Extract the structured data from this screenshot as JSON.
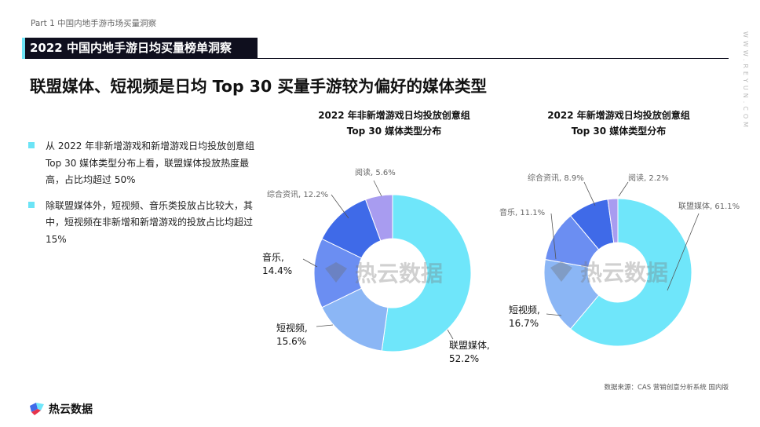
{
  "header": {
    "part": "Part 1  中国内地手游市场买量洞察",
    "banner": "2022 中国内地手游日均买量榜单洞察",
    "headline": "联盟媒体、短视频是日均 Top 30 买量手游较为偏好的媒体类型",
    "side_url": "WWW.REYUN.COM"
  },
  "bullets": [
    "从 2022 年非新增游戏和新增游戏日均投放创意组 Top 30 媒体类型分布上看，联盟媒体投放热度最高，占比均超过 50%",
    "除联盟媒体外，短视频、音乐类投放占比较大，其中，短视频在非新增和新增游戏的投放占比均超过 15%"
  ],
  "chart_data": [
    {
      "type": "pie",
      "title_lines": [
        "2022 年非新增游戏日均投放创意组",
        "Top 30 媒体类型分布"
      ],
      "watermark": "热云数据",
      "slices": [
        {
          "label": "联盟媒体",
          "value": 52.2,
          "display": "联盟媒体,\n52.2%",
          "color": "#6fe6fa"
        },
        {
          "label": "短视频",
          "value": 15.6,
          "display": "短视频,\n15.6%",
          "color": "#8bb6f5"
        },
        {
          "label": "音乐",
          "value": 14.4,
          "display": "音乐,\n14.4%",
          "color": "#6b8ef2"
        },
        {
          "label": "综合资讯",
          "value": 12.2,
          "display": "综合资讯, 12.2%",
          "color": "#3f6ae8"
        },
        {
          "label": "阅读",
          "value": 5.6,
          "display": "阅读, 5.6%",
          "color": "#a89cf0"
        }
      ]
    },
    {
      "type": "pie",
      "title_lines": [
        "2022 年新增游戏日均投放创意组",
        "Top 30 媒体类型分布"
      ],
      "watermark": "热云数据",
      "slices": [
        {
          "label": "联盟媒体",
          "value": 61.1,
          "display": "联盟媒体, 61.1%",
          "color": "#6fe6fa"
        },
        {
          "label": "短视频",
          "value": 16.7,
          "display": "短视频,\n16.7%",
          "color": "#8bb6f5"
        },
        {
          "label": "音乐",
          "value": 11.1,
          "display": "音乐, 11.1%",
          "color": "#6b8ef2"
        },
        {
          "label": "综合资讯",
          "value": 8.9,
          "display": "综合资讯, 8.9%",
          "color": "#3f6ae8"
        },
        {
          "label": "阅读",
          "value": 2.2,
          "display": "阅读, 2.2%",
          "color": "#a89cf0"
        }
      ]
    }
  ],
  "footer": {
    "source": "数据来源：CAS 营销创意分析系统 国内版",
    "logo_text": "热云数据"
  }
}
